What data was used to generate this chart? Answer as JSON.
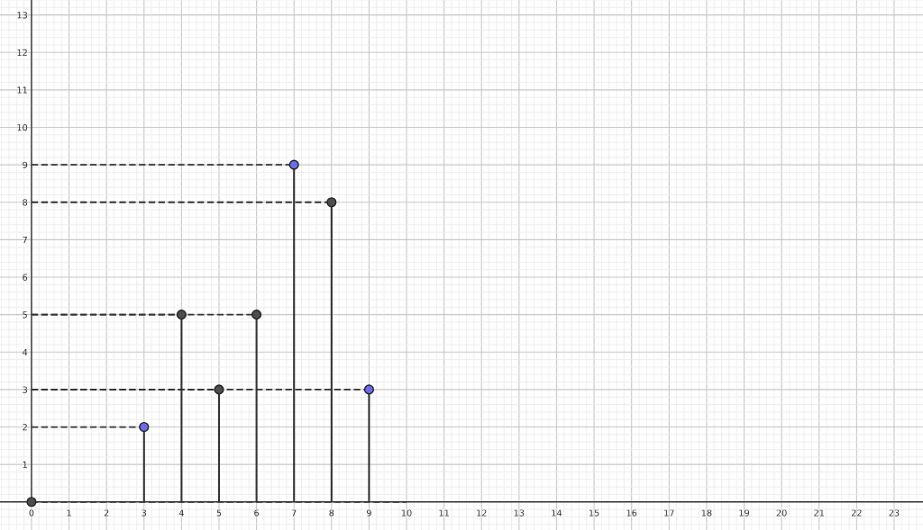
{
  "chart_data": {
    "type": "lollipop",
    "xlim": [
      -0.84,
      23.77
    ],
    "ylim": [
      -0.75,
      13.4
    ],
    "xticks": [
      0,
      1,
      2,
      3,
      4,
      5,
      6,
      7,
      8,
      9,
      10,
      11,
      12,
      13,
      14,
      15,
      16,
      17,
      18,
      19,
      20,
      21,
      22,
      23
    ],
    "yticks": [
      1,
      2,
      3,
      4,
      5,
      6,
      7,
      8,
      9,
      10,
      11,
      12,
      13
    ],
    "grid": true,
    "series": [
      {
        "marker": "circle",
        "x": [
          3,
          4,
          5,
          6,
          7,
          8,
          9
        ],
        "values": [
          2,
          5,
          3,
          5,
          9,
          8,
          3
        ],
        "colors": [
          "#6b6bf2",
          "#4d4d4d",
          "#4d4d4d",
          "#4d4d4d",
          "#6b6bf2",
          "#4d4d4d",
          "#6b6bf2"
        ]
      },
      {
        "type": "line",
        "x": [
          0,
          3
        ],
        "values": [
          2,
          2
        ],
        "color": "#333333",
        "line_style": "dashed"
      },
      {
        "type": "line",
        "x": [
          0,
          4
        ],
        "values": [
          5,
          5
        ],
        "color": "#333333",
        "line_style": "dashed"
      },
      {
        "type": "line",
        "x": [
          0,
          5
        ],
        "values": [
          3,
          3
        ],
        "color": "#333333",
        "line_style": "dashed"
      },
      {
        "type": "line",
        "x": [
          0,
          6
        ],
        "values": [
          5,
          5
        ],
        "color": "#333333",
        "line_style": "dashed"
      },
      {
        "type": "line",
        "x": [
          0,
          7
        ],
        "values": [
          9,
          9
        ],
        "color": "#333333",
        "line_style": "dashed"
      },
      {
        "type": "line",
        "x": [
          0,
          8
        ],
        "values": [
          8,
          8
        ],
        "color": "#333333",
        "line_style": "dashed"
      },
      {
        "type": "line",
        "x": [
          0,
          9
        ],
        "values": [
          3,
          3
        ],
        "color": "#333333",
        "line_style": "dashed"
      },
      {
        "type": "line",
        "x": [
          0,
          10
        ],
        "values": [
          0,
          0
        ],
        "color": "#333333",
        "line_style": "dashed"
      },
      {
        "type": "scatter",
        "marker": "circle",
        "x": [
          0
        ],
        "values": [
          0
        ],
        "color": "#4d4d4d"
      }
    ]
  }
}
